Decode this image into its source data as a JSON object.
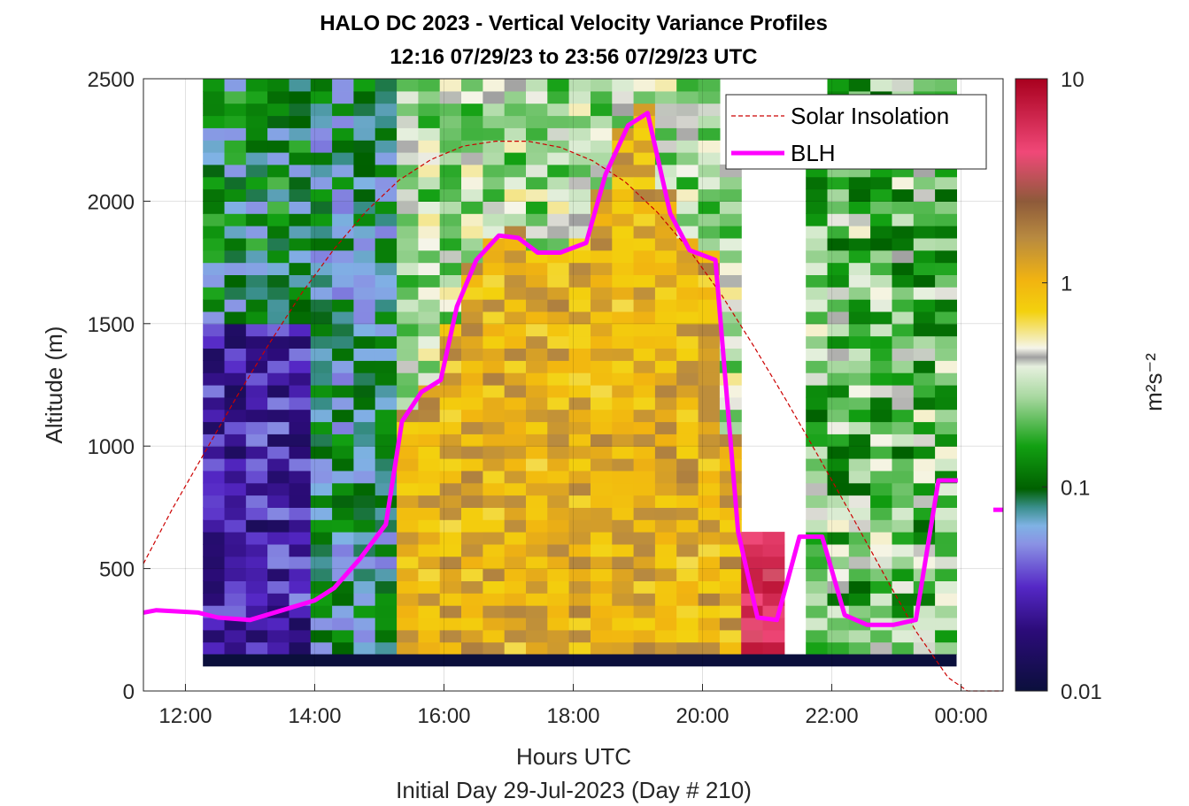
{
  "chart_data": {
    "type": "heatmap",
    "title_line1": "HALO DC 2023 - Vertical Velocity Variance Profiles",
    "title_line2": "12:16 07/29/23 to 23:56 07/29/23  UTC",
    "xlabel": "Hours UTC",
    "xlabel2": "Initial Day 29-Jul-2023 (Day # 210)",
    "ylabel": "Altitude (m)",
    "colorbar_label": "m²s⁻²",
    "colorbar_scale": "log",
    "colorbar_range": [
      0.01,
      10
    ],
    "colorbar_ticks": [
      "0.01",
      "0.1",
      "1",
      "10"
    ],
    "x_range_hours": [
      11.35,
      24.65
    ],
    "y_range": [
      0,
      2500
    ],
    "x_tick_labels": [
      "12:00",
      "14:00",
      "16:00",
      "18:00",
      "20:00",
      "22:00",
      "00:00"
    ],
    "y_tick_labels": [
      "0",
      "500",
      "1000",
      "1500",
      "2000",
      "2500"
    ],
    "grid": true,
    "legend_position": "top-right",
    "series": [
      {
        "name": "Solar Insolation",
        "color": "#cc0000",
        "style": "dashed",
        "x_hours": [
          11.35,
          11.8,
          12.3,
          12.8,
          13.3,
          13.8,
          14.3,
          14.8,
          15.3,
          15.8,
          16.3,
          16.8,
          17.3,
          17.8,
          18.3,
          18.8,
          19.3,
          19.8,
          20.3,
          20.8,
          21.3,
          21.8,
          22.3,
          22.8,
          23.3,
          23.8,
          24.1,
          24.3,
          24.5,
          24.65
        ],
        "y": [
          520,
          745,
          975,
          1205,
          1420,
          1625,
          1805,
          1960,
          2085,
          2170,
          2225,
          2245,
          2245,
          2220,
          2165,
          2080,
          1955,
          1800,
          1615,
          1405,
          1185,
          955,
          720,
          480,
          245,
          55,
          0,
          0,
          0,
          0
        ]
      },
      {
        "name": "BLH",
        "color": "#ff00ff",
        "style": "solid",
        "x_hours": [
          11.35,
          11.55,
          12.2,
          12.5,
          13.0,
          13.5,
          14.0,
          14.3,
          14.7,
          15.1,
          15.35,
          15.65,
          15.95,
          16.2,
          16.5,
          16.85,
          17.15,
          17.45,
          17.8,
          18.2,
          18.5,
          18.85,
          19.15,
          19.5,
          19.8,
          20.2,
          20.55,
          20.85,
          21.15,
          21.5,
          21.85,
          22.2,
          22.55,
          22.95,
          23.3,
          23.65,
          23.95,
          24.35
        ],
        "y": [
          320,
          330,
          320,
          300,
          290,
          330,
          370,
          420,
          540,
          680,
          1100,
          1220,
          1270,
          1570,
          1760,
          1860,
          1850,
          1790,
          1790,
          1830,
          2110,
          2310,
          2360,
          1950,
          1800,
          1760,
          650,
          300,
          290,
          630,
          630,
          310,
          270,
          270,
          290,
          860,
          860,
          null
        ],
        "segment2": {
          "x_hours": [
            24.5,
            24.65
          ],
          "y": [
            740,
            740
          ]
        }
      }
    ],
    "heatmap_note": "Time-height grid of vertical velocity variance; columns ~0.33 h wide, rows 50 m tall, from 12:16 to 23:56 UTC.",
    "heatmap_regimes": [
      {
        "time": "12:16-14:05",
        "dominant_level": "0.01-0.05 (dark blue/purple) below 1500 m, 0.05-0.2 above"
      },
      {
        "time": "14:05-15:20",
        "dominant_level": "0.03-0.15 (blue/green)"
      },
      {
        "time": "15:20-20:40",
        "dominant_level": "0.5-1.5 (yellow/orange/brown) below BLH, 0.1-0.4 above"
      },
      {
        "time": "20:40-21:15",
        "dominant_level": "3-8 (red/pink) below 670 m"
      },
      {
        "time": "21:15-21:40",
        "dominant_level": "no data"
      },
      {
        "time": "21:40-23:56",
        "dominant_level": "0.05-0.4 (green/white/grey)"
      }
    ]
  }
}
